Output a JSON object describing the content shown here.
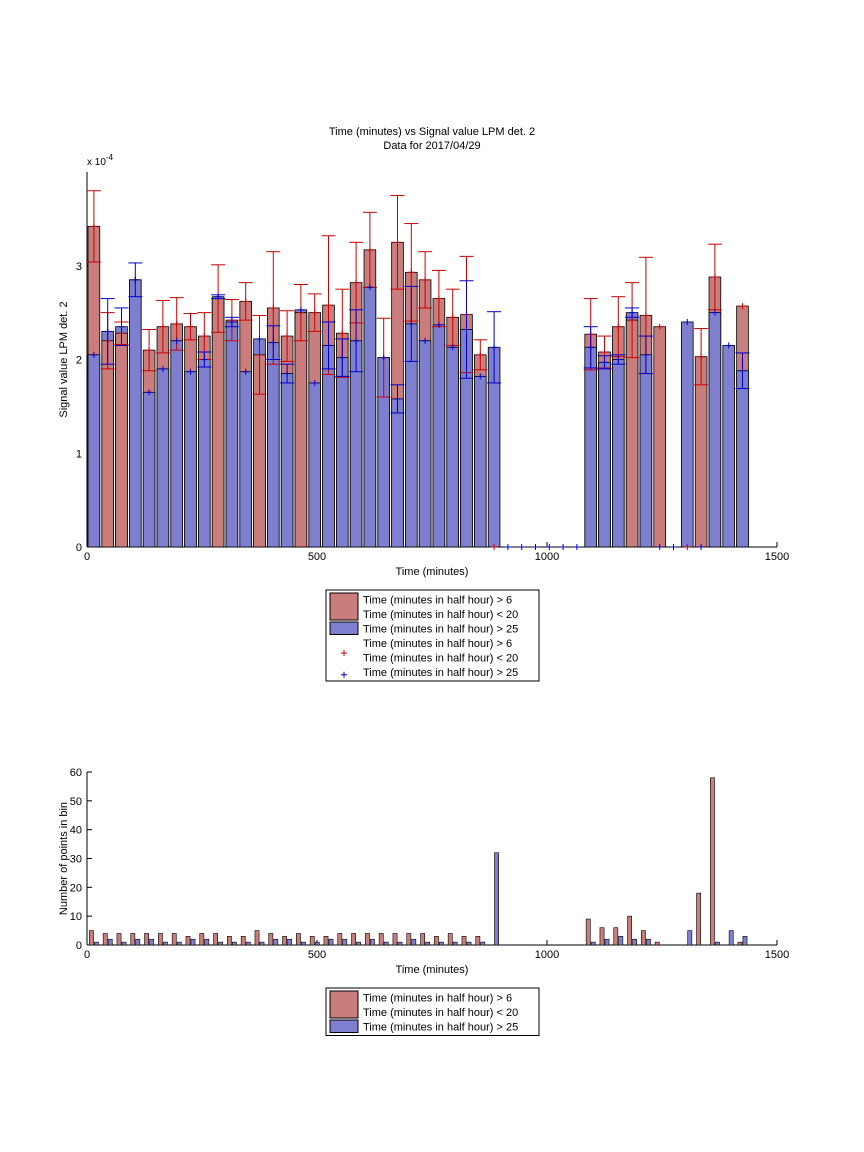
{
  "figure": {
    "title_line1": "Time (minutes) vs Signal value LPM det. 2",
    "title_line2": "Data for 2017/04/29"
  },
  "colors": {
    "series_a_fill": "#c97d7d",
    "series_b_fill": "#7f7fd0",
    "series_a_marker": "#cc0000",
    "series_b_marker": "#0000cc",
    "axis": "#000000"
  },
  "chart_data": [
    {
      "type": "bar",
      "xlabel": "Time (minutes)",
      "ylabel": "Signal value LPM det. 2",
      "exponent_label": "x 10",
      "exponent_power": "-4",
      "xlim": [
        0,
        1500
      ],
      "ylim": [
        0,
        4
      ],
      "xticks": [
        0,
        500,
        1000,
        1500
      ],
      "yticks": [
        0,
        1,
        2,
        3
      ],
      "grid": false,
      "legend_position": "below",
      "legend": [
        "Time (minutes in half hour) > 6\nTime (minutes in half hour) < 20",
        "Time (minutes in half hour) > 25",
        "Time (minutes in half hour) > 6\nTime (minutes in half hour) < 20",
        "Time (minutes in half hour) > 25"
      ],
      "x": [
        15,
        45,
        75,
        105,
        135,
        165,
        195,
        225,
        255,
        285,
        315,
        345,
        375,
        405,
        435,
        465,
        495,
        525,
        555,
        585,
        615,
        645,
        675,
        705,
        735,
        765,
        795,
        825,
        855,
        885,
        915,
        945,
        975,
        1005,
        1035,
        1065,
        1095,
        1125,
        1155,
        1185,
        1215,
        1245,
        1275,
        1305,
        1335,
        1365,
        1395,
        1425
      ],
      "series": [
        {
          "name": "Time (minutes in half hour) > 6\nTime (minutes in half hour) < 20",
          "values": [
            3.42,
            2.2,
            2.28,
            2.85,
            2.1,
            2.35,
            2.38,
            2.35,
            2.25,
            2.65,
            2.42,
            2.62,
            2.05,
            2.55,
            2.25,
            2.5,
            2.5,
            2.58,
            2.28,
            2.82,
            3.17,
            2.02,
            3.25,
            2.93,
            2.85,
            2.65,
            2.45,
            2.48,
            2.05,
            0,
            0,
            0,
            0,
            0,
            0,
            0,
            2.27,
            2.08,
            2.35,
            2.42,
            2.47,
            2.35,
            0,
            0,
            2.03,
            2.88,
            0,
            2.57
          ],
          "err_low": [
            0.38,
            0.3,
            0.12,
            0,
            0.22,
            0.28,
            0.28,
            0.14,
            0.25,
            0.36,
            0.22,
            0.2,
            0.42,
            0.6,
            0.27,
            0.3,
            0.2,
            0.74,
            0.47,
            0.43,
            0.4,
            0.42,
            0.5,
            0.52,
            0.3,
            0.3,
            0.3,
            0.62,
            0.16,
            0,
            0,
            0,
            0,
            0,
            0,
            0,
            0.38,
            0.17,
            0.32,
            0.4,
            0.62,
            0,
            0,
            0,
            0.3,
            0.35,
            0,
            0
          ]
        },
        {
          "name": "Time (minutes in half hour) > 25",
          "values": [
            2.05,
            2.3,
            2.35,
            2.85,
            1.65,
            1.9,
            2.2,
            1.87,
            2.0,
            2.67,
            2.4,
            1.87,
            2.22,
            2.18,
            1.85,
            2.53,
            1.75,
            2.15,
            2.02,
            2.2,
            2.77,
            2.02,
            1.58,
            2.38,
            2.2,
            2.37,
            2.13,
            2.32,
            1.82,
            2.13,
            0,
            0,
            0,
            0,
            0,
            0,
            2.13,
            1.97,
            2.0,
            2.5,
            2.05,
            0,
            0,
            2.4,
            0,
            2.5,
            2.15,
            1.88
          ],
          "err_low": [
            0,
            0.35,
            0.2,
            0.18,
            0,
            0,
            0,
            0,
            0.08,
            0.02,
            0.05,
            0,
            0,
            0.18,
            0.1,
            0,
            0,
            0.25,
            0.2,
            0.33,
            0,
            0,
            0.15,
            0.4,
            0,
            0,
            0,
            0.52,
            0,
            0.38,
            0,
            0,
            0,
            0,
            0,
            0,
            0.22,
            0.07,
            0.05,
            0.05,
            0.2,
            0,
            0,
            0,
            0,
            0,
            0,
            0.19
          ]
        }
      ],
      "series_markers_at_zero_x": [
        885,
        915,
        945,
        975,
        1005,
        1035,
        1065,
        1245,
        1275,
        1305,
        1335
      ]
    },
    {
      "type": "bar",
      "xlabel": "Time (minutes)",
      "ylabel": "Number of points in bin",
      "xlim": [
        0,
        1500
      ],
      "ylim": [
        0,
        60
      ],
      "xticks": [
        0,
        500,
        1000,
        1500
      ],
      "yticks": [
        0,
        10,
        20,
        30,
        40,
        50,
        60
      ],
      "grid": false,
      "legend_position": "below",
      "legend": [
        "Time (minutes in half hour) > 6\nTime (minutes in half hour) < 20",
        "Time (minutes in half hour) > 25"
      ],
      "x": [
        15,
        45,
        75,
        105,
        135,
        165,
        195,
        225,
        255,
        285,
        315,
        345,
        375,
        405,
        435,
        465,
        495,
        525,
        555,
        585,
        615,
        645,
        675,
        705,
        735,
        765,
        795,
        825,
        855,
        885,
        915,
        945,
        975,
        1005,
        1035,
        1065,
        1095,
        1125,
        1155,
        1185,
        1215,
        1245,
        1275,
        1305,
        1335,
        1365,
        1395,
        1425
      ],
      "series": [
        {
          "name": "Time (minutes in half hour) > 6\nTime (minutes in half hour) < 20",
          "values": [
            5,
            4,
            4,
            4,
            4,
            4,
            4,
            3,
            4,
            4,
            3,
            3,
            5,
            4,
            3,
            4,
            3,
            3,
            4,
            4,
            4,
            4,
            4,
            4,
            4,
            3,
            4,
            3,
            3,
            0,
            0,
            0,
            0,
            0,
            0,
            0,
            9,
            6,
            6,
            10,
            5,
            1,
            0,
            0,
            18,
            58,
            0,
            1
          ]
        },
        {
          "name": "Time (minutes in half hour) > 25",
          "values": [
            1,
            2,
            1,
            2,
            2,
            1,
            1,
            2,
            2,
            1,
            1,
            1,
            1,
            2,
            2,
            1,
            1,
            2,
            2,
            1,
            2,
            1,
            1,
            2,
            1,
            1,
            1,
            1,
            1,
            32,
            0,
            0,
            0,
            0,
            0,
            0,
            1,
            2,
            3,
            2,
            2,
            0,
            0,
            5,
            0,
            1,
            5,
            3
          ]
        }
      ]
    }
  ]
}
